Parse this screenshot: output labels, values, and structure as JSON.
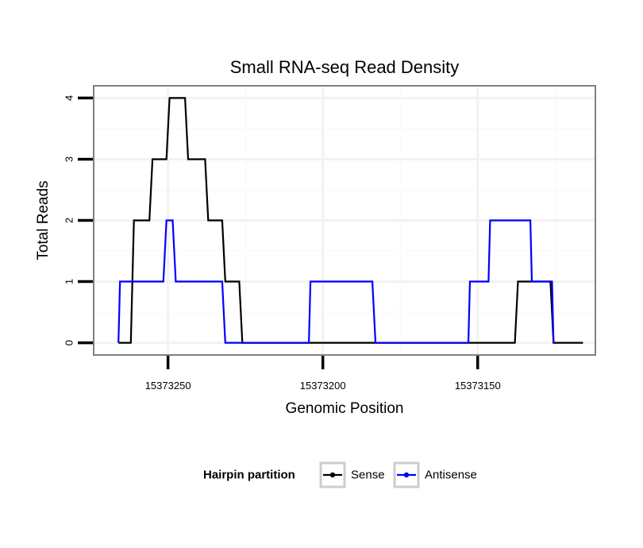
{
  "chart_data": {
    "type": "line",
    "title": "Small RNA-seq Read Density",
    "xlabel": "Genomic Position",
    "ylabel": "Total Reads",
    "x_reversed": true,
    "xlim": [
      15373274,
      15373112
    ],
    "ylim": [
      -0.2,
      4.2
    ],
    "xticks": [
      15373250,
      15373200,
      15373150
    ],
    "xtick_labels": [
      "15373250",
      "15373200",
      "15373150"
    ],
    "yticks": [
      0,
      1,
      2,
      3,
      4
    ],
    "ytick_labels": [
      "0",
      "1",
      "2",
      "3",
      "4"
    ],
    "grid": true,
    "legend": {
      "title": "Hairpin partition",
      "position": "bottom",
      "entries": [
        "Sense",
        "Antisense"
      ]
    },
    "series": [
      {
        "name": "Sense",
        "color": "#000000",
        "x": [
          15373266,
          15373262,
          15373261,
          15373256,
          15373255,
          15373250.5,
          15373249.5,
          15373244.5,
          15373243.5,
          15373238,
          15373237,
          15373232.5,
          15373231.5,
          15373227,
          15373226,
          15373138,
          15373137,
          15373126.5,
          15373125.5,
          15373116
        ],
        "y": [
          0,
          0,
          2,
          2,
          3,
          3,
          4,
          4,
          3,
          3,
          2,
          2,
          1,
          1,
          0,
          0,
          1,
          1,
          0,
          0
        ]
      },
      {
        "name": "Antisense",
        "color": "#0000ff",
        "x": [
          15373266,
          15373265.5,
          15373251.5,
          15373250.5,
          15373248.5,
          15373247.5,
          15373232.5,
          15373231.5,
          15373204.5,
          15373204,
          15373184,
          15373183,
          15373153,
          15373152.5,
          15373146.5,
          15373146,
          15373133,
          15373132.5,
          15373126,
          15373125.5
        ],
        "y": [
          0,
          1,
          1,
          2,
          2,
          1,
          1,
          0,
          0,
          1,
          1,
          0,
          0,
          1,
          1,
          2,
          2,
          1,
          1,
          0
        ]
      }
    ]
  }
}
